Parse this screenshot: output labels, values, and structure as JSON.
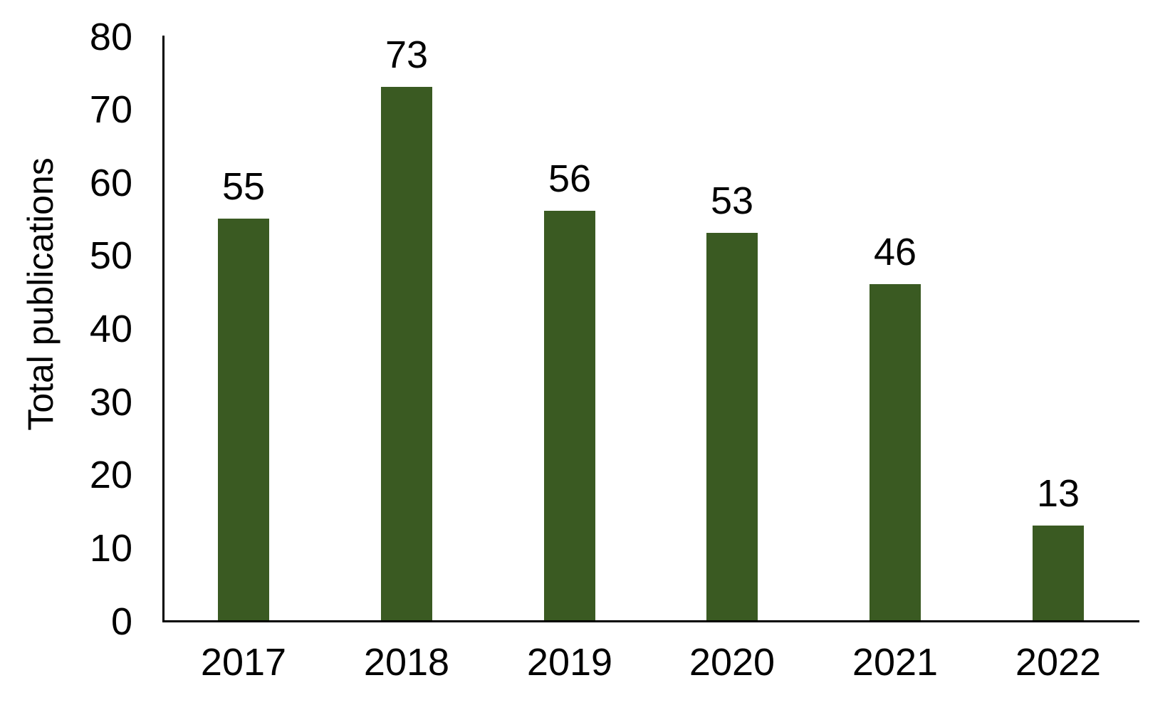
{
  "chart_data": {
    "type": "bar",
    "categories": [
      "2017",
      "2018",
      "2019",
      "2020",
      "2021",
      "2022"
    ],
    "values": [
      55,
      73,
      56,
      53,
      46,
      13
    ],
    "data_labels": [
      "55",
      "73",
      "56",
      "53",
      "46",
      "13"
    ],
    "title": "",
    "xlabel": "",
    "ylabel": "Total publications",
    "ylim": [
      0,
      80
    ],
    "yticks": [
      0,
      10,
      20,
      30,
      40,
      50,
      60,
      70,
      80
    ],
    "grid": false,
    "legend_position": "none",
    "colors": {
      "bar": "#3A5A22",
      "axis": "#000000",
      "text": "#000000",
      "background": "#FFFFFF"
    }
  }
}
